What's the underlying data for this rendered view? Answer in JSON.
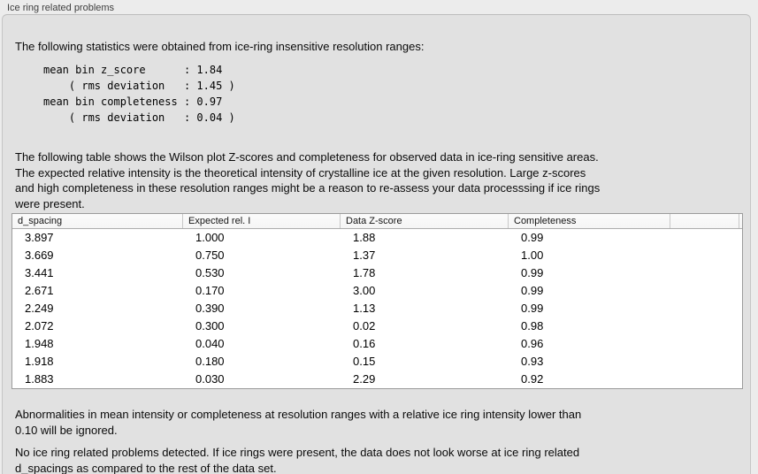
{
  "panel": {
    "title": "Ice ring related problems"
  },
  "intro": "The following statistics were obtained from ice-ring insensitive resolution ranges:",
  "stats_text": "mean bin z_score      : 1.84\n    ( rms deviation   : 1.45 )\nmean bin completeness : 0.97\n    ( rms deviation   : 0.04 )",
  "stats": {
    "mean_bin_z_score": "1.84",
    "z_score_rms_deviation": "1.45",
    "mean_bin_completeness": "0.97",
    "completeness_rms_deviation": "0.04"
  },
  "table_note": "The following table shows the Wilson plot Z-scores and completeness for observed data in ice-ring sensitive areas.\nThe expected relative intensity is the theoretical intensity of crystalline ice at the given resolution. Large z-scores\nand high completeness in these resolution ranges might be a reason to re-assess your data processsing if ice rings\nwere present.",
  "table": {
    "columns": [
      "d_spacing",
      "Expected rel. I",
      "Data Z-score",
      "Completeness"
    ],
    "rows": [
      [
        "3.897",
        "1.000",
        "1.88",
        "0.99"
      ],
      [
        "3.669",
        "0.750",
        "1.37",
        "1.00"
      ],
      [
        "3.441",
        "0.530",
        "1.78",
        "0.99"
      ],
      [
        "2.671",
        "0.170",
        "3.00",
        "0.99"
      ],
      [
        "2.249",
        "0.390",
        "1.13",
        "0.99"
      ],
      [
        "2.072",
        "0.300",
        "0.02",
        "0.98"
      ],
      [
        "1.948",
        "0.040",
        "0.16",
        "0.96"
      ],
      [
        "1.918",
        "0.180",
        "0.15",
        "0.93"
      ],
      [
        "1.883",
        "0.030",
        "2.29",
        "0.92"
      ]
    ]
  },
  "ignore_note": "Abnormalities in mean intensity or completeness at resolution ranges with a relative ice ring intensity lower than\n0.10 will be ignored.",
  "conclusion": "No ice ring related problems detected. If ice rings were present, the data does not look worse at ice ring related\nd_spacings as compared to the rest of the data set.",
  "colors": {
    "page_bg": "#ececec",
    "panel_bg": "#e1e1e1",
    "panel_border": "#c5c5c5",
    "table_border": "#9b9b9b",
    "header_bg": "#f5f5f5"
  }
}
